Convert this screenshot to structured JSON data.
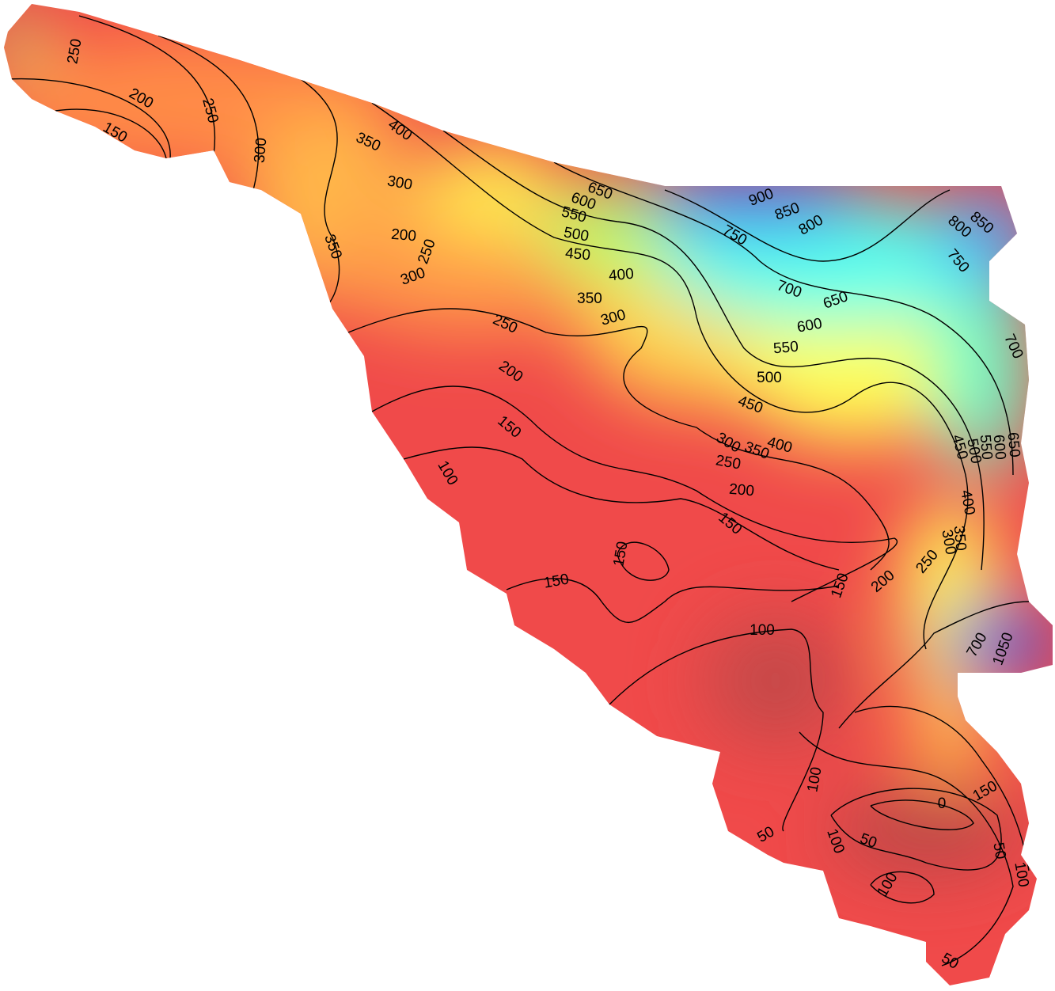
{
  "map": {
    "contour_labels": [
      250,
      200,
      150,
      250,
      300,
      400,
      350,
      300,
      200,
      250,
      300,
      350,
      650,
      600,
      550,
      500,
      450,
      400,
      350,
      300,
      250,
      200,
      150,
      100,
      900,
      850,
      800,
      750,
      850,
      800,
      750,
      700,
      650,
      600,
      550,
      500,
      450,
      400,
      350,
      300,
      250,
      200,
      150,
      700,
      650,
      600,
      550,
      500,
      450,
      400,
      350,
      300,
      250,
      200,
      150,
      150,
      150,
      100,
      1050,
      700,
      100,
      0,
      50,
      100,
      50,
      100,
      100,
      50,
      50,
      150
    ]
  }
}
